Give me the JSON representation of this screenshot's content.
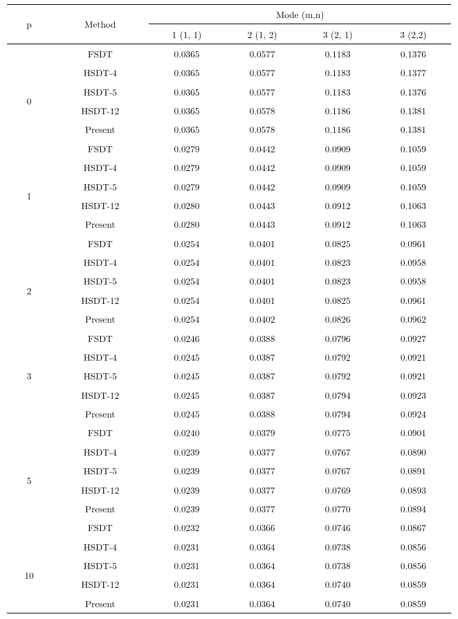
{
  "header": {
    "p": "p",
    "method": "Method",
    "mode_group": "Mode (m,n)",
    "modes": [
      "1 (1, 1)",
      "2 (1, 2)",
      "3 (2, 1)",
      "3 (2,2)"
    ]
  },
  "methods": [
    "FSDT",
    "HSDT-4",
    "HSDT-5",
    "HSDT-12",
    "Present"
  ],
  "groups": [
    {
      "p": "0",
      "rows": [
        [
          "0.0365",
          "0.0577",
          "0.1183",
          "0.1376"
        ],
        [
          "0.0365",
          "0.0577",
          "0.1183",
          "0.1377"
        ],
        [
          "0.0365",
          "0.0577",
          "0.1183",
          "0.1376"
        ],
        [
          "0.0365",
          "0.0578",
          "0.1186",
          "0.1381"
        ],
        [
          "0.0365",
          "0.0578",
          "0.1186",
          "0.1381"
        ]
      ]
    },
    {
      "p": "1",
      "rows": [
        [
          "0.0279",
          "0.0442",
          "0.0909",
          "0.1059"
        ],
        [
          "0.0279",
          "0.0442",
          "0.0909",
          "0.1059"
        ],
        [
          "0.0279",
          "0.0442",
          "0.0909",
          "0.1059"
        ],
        [
          "0.0280",
          "0.0443",
          "0.0912",
          "0.1063"
        ],
        [
          "0.0280",
          "0.0443",
          "0.0912",
          "0.1063"
        ]
      ]
    },
    {
      "p": "2",
      "rows": [
        [
          "0.0254",
          "0.0401",
          "0.0825",
          "0.0961"
        ],
        [
          "0.0254",
          "0.0401",
          "0.0823",
          "0.0958"
        ],
        [
          "0.0254",
          "0.0401",
          "0.0823",
          "0.0958"
        ],
        [
          "0.0254",
          "0.0401",
          "0.0825",
          "0.0961"
        ],
        [
          "0.0254",
          "0.0402",
          "0.0826",
          "0.0962"
        ]
      ]
    },
    {
      "p": "3",
      "rows": [
        [
          "0.0246",
          "0.0388",
          "0.0796",
          "0.0927"
        ],
        [
          "0.0245",
          "0.0387",
          "0.0792",
          "0.0921"
        ],
        [
          "0.0245",
          "0.0387",
          "0.0792",
          "0.0921"
        ],
        [
          "0.0245",
          "0.0387",
          "0.0794",
          "0.0923"
        ],
        [
          "0.0245",
          "0.0388",
          "0.0794",
          "0.0924"
        ]
      ]
    },
    {
      "p": "5",
      "rows": [
        [
          "0.0240",
          "0.0379",
          "0.0775",
          "0.0901"
        ],
        [
          "0.0239",
          "0.0377",
          "0.0767",
          "0.0890"
        ],
        [
          "0.0239",
          "0.0377",
          "0.0767",
          "0.0891"
        ],
        [
          "0.0239",
          "0.0377",
          "0.0769",
          "0.0893"
        ],
        [
          "0.0239",
          "0.0377",
          "0.0770",
          "0.0894"
        ]
      ]
    },
    {
      "p": "10",
      "rows": [
        [
          "0.0232",
          "0.0366",
          "0.0746",
          "0.0867"
        ],
        [
          "0.0231",
          "0.0364",
          "0.0738",
          "0.0856"
        ],
        [
          "0.0231",
          "0.0364",
          "0.0738",
          "0.0856"
        ],
        [
          "0.0231",
          "0.0364",
          "0.0740",
          "0.0859"
        ],
        [
          "0.0231",
          "0.0364",
          "0.0740",
          "0.0859"
        ]
      ]
    }
  ],
  "p_label_row_index": {
    "default": 1,
    "3": 0
  }
}
